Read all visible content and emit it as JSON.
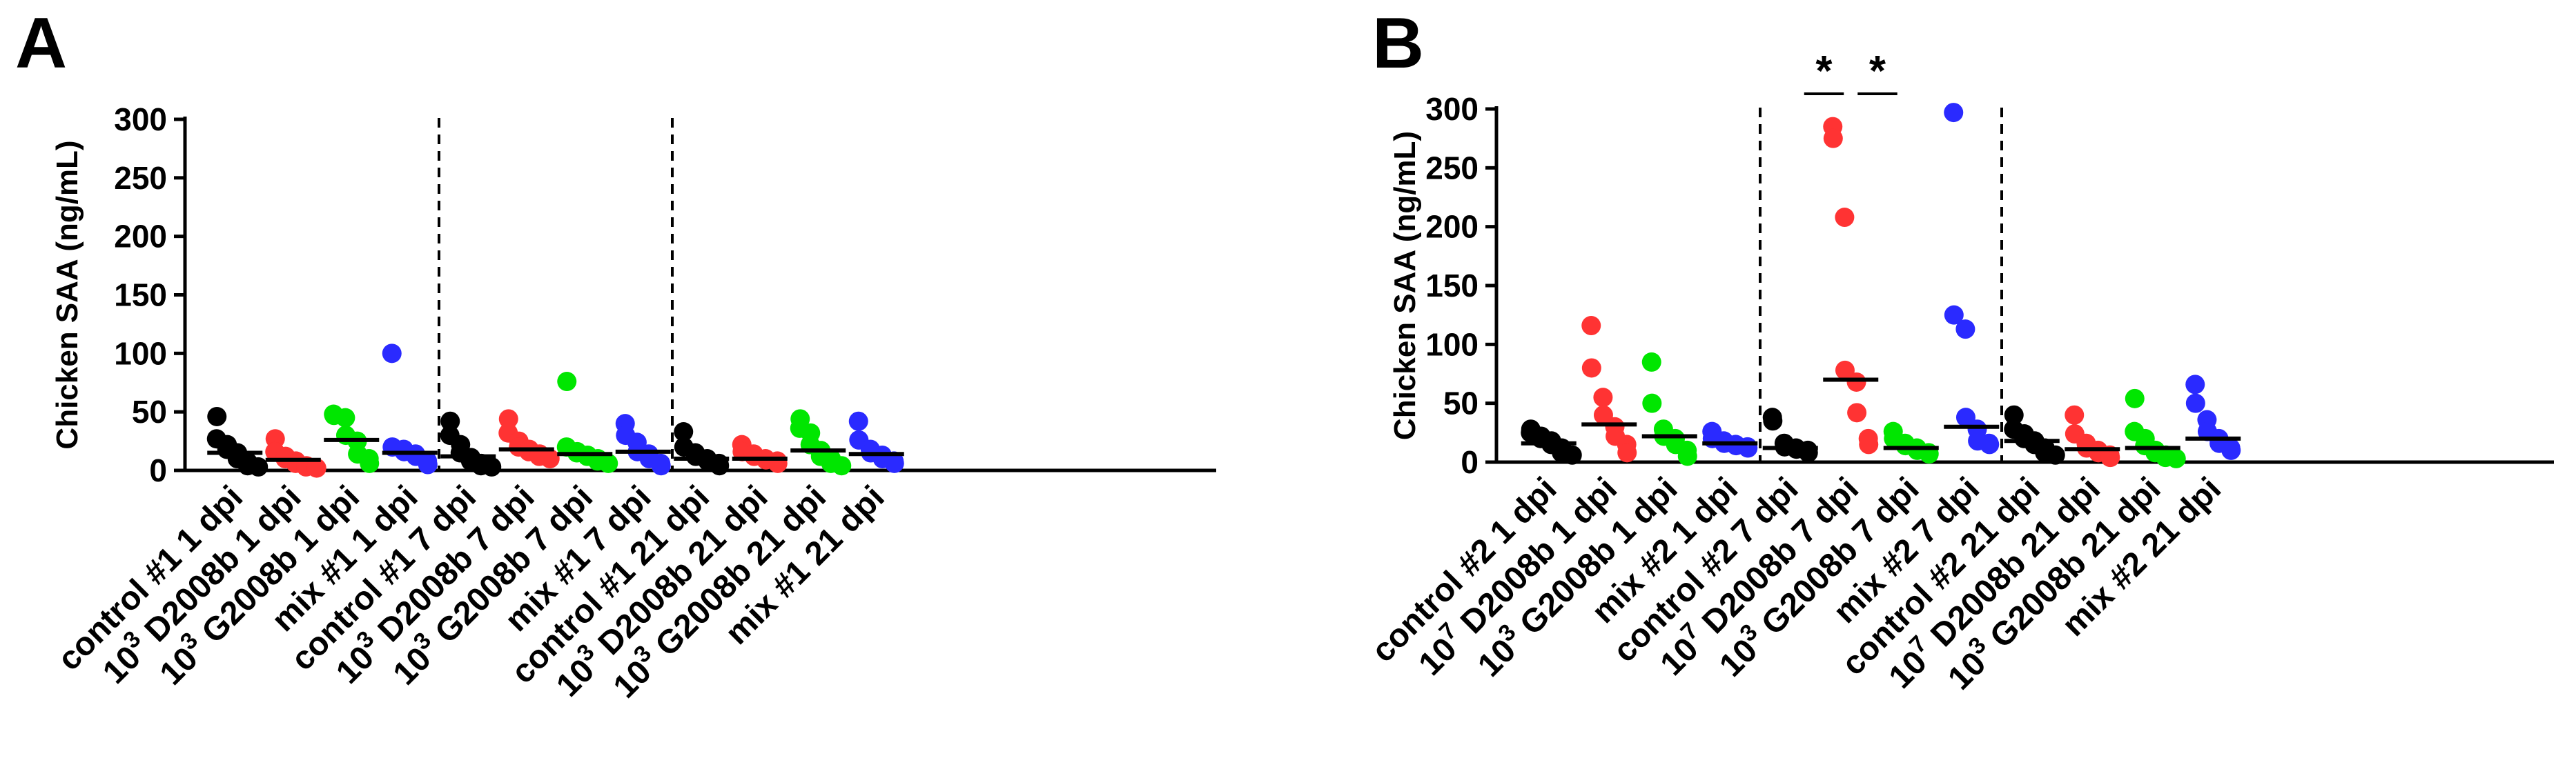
{
  "chart_data": [
    {
      "panel": "A",
      "type": "scatter",
      "ylabel": "Chicken SAA (ng/mL)",
      "ylim": [
        0,
        300
      ],
      "yticks": [
        0,
        50,
        100,
        150,
        200,
        250,
        300
      ],
      "dividers_after_group": [
        4,
        8
      ],
      "significance": [],
      "groups": [
        {
          "label_parts": [
            "control #1 1 dpi"
          ],
          "color": "#000000",
          "median": 15,
          "values": [
            46,
            27,
            22,
            18,
            15,
            10,
            7,
            4,
            3
          ]
        },
        {
          "label_parts": [
            "10",
            "3",
            " D2008b 1 dpi"
          ],
          "color": "#ff3333",
          "median": 9,
          "values": [
            27,
            16,
            12,
            10,
            8,
            6,
            4,
            3,
            2
          ]
        },
        {
          "label_parts": [
            "10",
            "3",
            " G2008b 1 dpi"
          ],
          "color": "#00e600",
          "median": 26,
          "values": [
            48,
            47,
            45,
            30,
            25,
            14,
            10,
            6
          ]
        },
        {
          "label_parts": [
            "mix #1 1 dpi"
          ],
          "color": "#2a2aff",
          "median": 15,
          "values": [
            100,
            20,
            18,
            16,
            14,
            12,
            8,
            5
          ]
        },
        {
          "label_parts": [
            "control #1 7 dpi"
          ],
          "color": "#000000",
          "median": 12,
          "values": [
            42,
            30,
            22,
            15,
            11,
            8,
            6,
            4,
            3
          ]
        },
        {
          "label_parts": [
            "10",
            "3",
            " D2008b 7 dpi"
          ],
          "color": "#ff3333",
          "median": 18,
          "values": [
            44,
            32,
            25,
            20,
            18,
            16,
            14,
            12,
            10
          ]
        },
        {
          "label_parts": [
            "10",
            "3",
            " G2008b 7 dpi"
          ],
          "color": "#00e600",
          "median": 14,
          "values": [
            76,
            20,
            16,
            15,
            13,
            12,
            10,
            8,
            6
          ]
        },
        {
          "label_parts": [
            "mix #1 7 dpi"
          ],
          "color": "#2a2aff",
          "median": 16,
          "values": [
            40,
            30,
            24,
            16,
            14,
            10,
            6,
            4
          ]
        },
        {
          "label_parts": [
            "control #1 21 dpi"
          ],
          "color": "#000000",
          "median": 10,
          "values": [
            33,
            20,
            15,
            12,
            10,
            8,
            6,
            4
          ]
        },
        {
          "label_parts": [
            "10",
            "3",
            " D2008b 21 dpi"
          ],
          "color": "#ff3333",
          "median": 10,
          "values": [
            22,
            16,
            14,
            12,
            10,
            9,
            8,
            6
          ]
        },
        {
          "label_parts": [
            "10",
            "3",
            " G2008b 21 dpi"
          ],
          "color": "#00e600",
          "median": 17,
          "values": [
            44,
            36,
            32,
            22,
            17,
            12,
            10,
            6,
            4
          ]
        },
        {
          "label_parts": [
            "mix #1 21 dpi"
          ],
          "color": "#2a2aff",
          "median": 14,
          "values": [
            42,
            26,
            18,
            15,
            13,
            10,
            8,
            6
          ]
        }
      ]
    },
    {
      "panel": "B",
      "type": "scatter",
      "ylabel": "Chicken SAA (ng/mL)",
      "ylim": [
        0,
        300
      ],
      "yticks": [
        0,
        50,
        100,
        150,
        200,
        250,
        300
      ],
      "dividers_after_group": [
        4,
        8
      ],
      "significance": [
        {
          "from_group": 5,
          "to_group": 6,
          "label": "*"
        },
        {
          "from_group": 6,
          "to_group": 7,
          "label": "*"
        }
      ],
      "groups": [
        {
          "label_parts": [
            "control #2 1 dpi"
          ],
          "color": "#000000",
          "median": 16,
          "values": [
            28,
            25,
            22,
            20,
            18,
            15,
            12,
            8,
            6
          ]
        },
        {
          "label_parts": [
            "10",
            "7",
            " D2008b 1 dpi"
          ],
          "color": "#ff3333",
          "median": 32,
          "values": [
            116,
            80,
            55,
            40,
            30,
            22,
            15,
            8
          ]
        },
        {
          "label_parts": [
            "10",
            "3",
            " G2008b 1 dpi"
          ],
          "color": "#00e600",
          "median": 22,
          "values": [
            85,
            50,
            28,
            22,
            20,
            15,
            10,
            5
          ]
        },
        {
          "label_parts": [
            "mix #2 1 dpi"
          ],
          "color": "#2a2aff",
          "median": 16,
          "values": [
            26,
            20,
            18,
            16,
            15,
            14,
            13,
            12
          ]
        },
        {
          "label_parts": [
            "control #2 7 dpi"
          ],
          "color": "#000000",
          "median": 12,
          "values": [
            38,
            35,
            16,
            13,
            12,
            11,
            10,
            8
          ]
        },
        {
          "label_parts": [
            "10",
            "7",
            " D2008b 7 dpi"
          ],
          "color": "#ff3333",
          "median": 70,
          "values": [
            285,
            275,
            208,
            78,
            68,
            42,
            20,
            15
          ]
        },
        {
          "label_parts": [
            "10",
            "3",
            " G2008b 7 dpi"
          ],
          "color": "#00e600",
          "median": 12,
          "values": [
            26,
            20,
            16,
            14,
            12,
            10,
            8,
            7
          ]
        },
        {
          "label_parts": [
            "mix #2 7 dpi"
          ],
          "color": "#2a2aff",
          "median": 30,
          "values": [
            297,
            125,
            113,
            38,
            28,
            18,
            16,
            15
          ]
        },
        {
          "label_parts": [
            "control #2 21 dpi"
          ],
          "color": "#000000",
          "median": 18,
          "values": [
            40,
            28,
            24,
            20,
            18,
            15,
            12,
            8,
            6
          ]
        },
        {
          "label_parts": [
            "10",
            "7",
            " D2008b 21 dpi"
          ],
          "color": "#ff3333",
          "median": 11,
          "values": [
            40,
            24,
            16,
            12,
            10,
            8,
            6,
            4
          ]
        },
        {
          "label_parts": [
            "10",
            "3",
            " G2008b 21 dpi"
          ],
          "color": "#00e600",
          "median": 12,
          "values": [
            54,
            26,
            20,
            14,
            10,
            8,
            6,
            4,
            3
          ]
        },
        {
          "label_parts": [
            "mix #2 21 dpi"
          ],
          "color": "#2a2aff",
          "median": 20,
          "values": [
            66,
            50,
            36,
            26,
            20,
            16,
            12,
            10
          ]
        }
      ]
    }
  ]
}
